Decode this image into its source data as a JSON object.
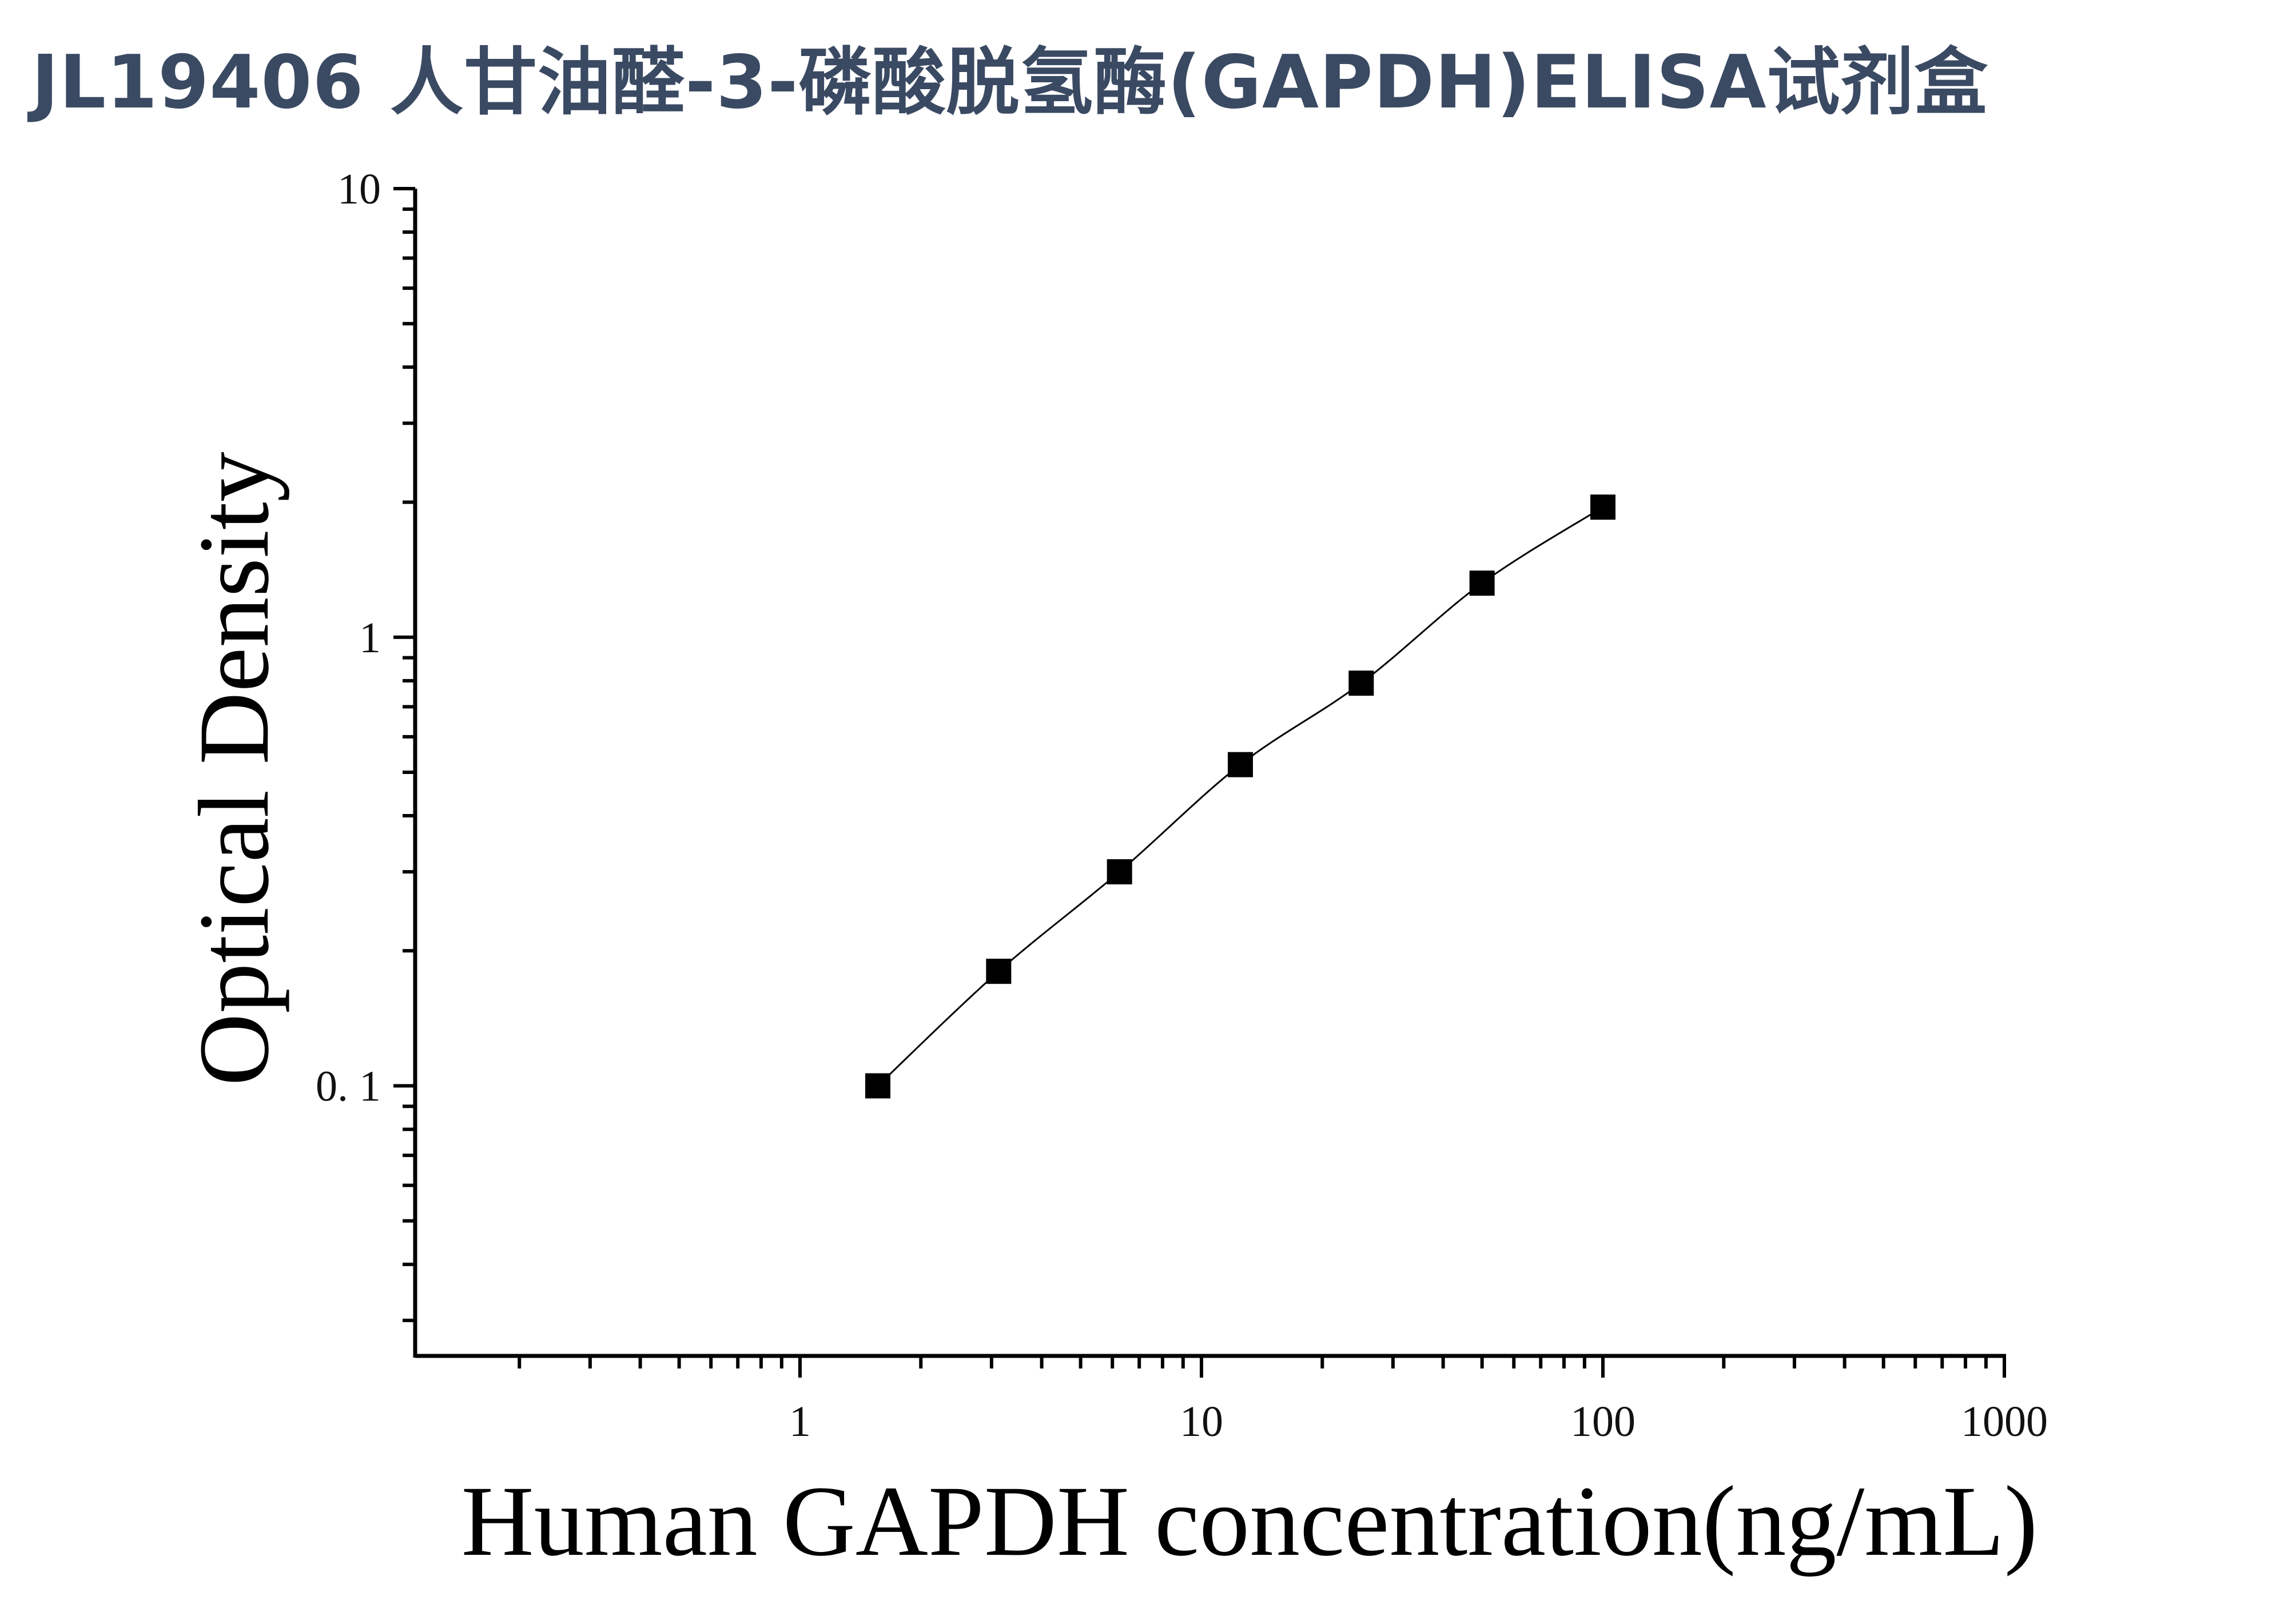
{
  "title": "JL19406 人甘油醛-3-磷酸脱氢酶(GAPDH)ELISA试剂盒",
  "chart_data": {
    "type": "scatter",
    "title": "JL19406 人甘油醛-3-磷酸脱氢酶(GAPDH)ELISA试剂盒",
    "xlabel": "Human GAPDH concentration(ng/mL)",
    "ylabel": "Optical Density",
    "xscale": "log",
    "yscale": "log",
    "xlim": [
      0.11,
      1000
    ],
    "ylim": [
      0.025,
      10
    ],
    "x_ticks": [
      {
        "value": 1,
        "label": "1"
      },
      {
        "value": 10,
        "label": "10"
      },
      {
        "value": 100,
        "label": "100"
      },
      {
        "value": 1000,
        "label": "1000"
      }
    ],
    "y_ticks": [
      {
        "value": 0.1,
        "label": "0. 1"
      },
      {
        "value": 1,
        "label": "1"
      },
      {
        "value": 10,
        "label": "10"
      }
    ],
    "grid": false,
    "marker": "square",
    "fit_line": true,
    "series": [
      {
        "x": [
          1.5625,
          3.125,
          6.25,
          12.5,
          25,
          50,
          100
        ],
        "y": [
          0.1,
          0.18,
          0.3,
          0.52,
          0.79,
          1.32,
          1.95
        ]
      }
    ]
  }
}
